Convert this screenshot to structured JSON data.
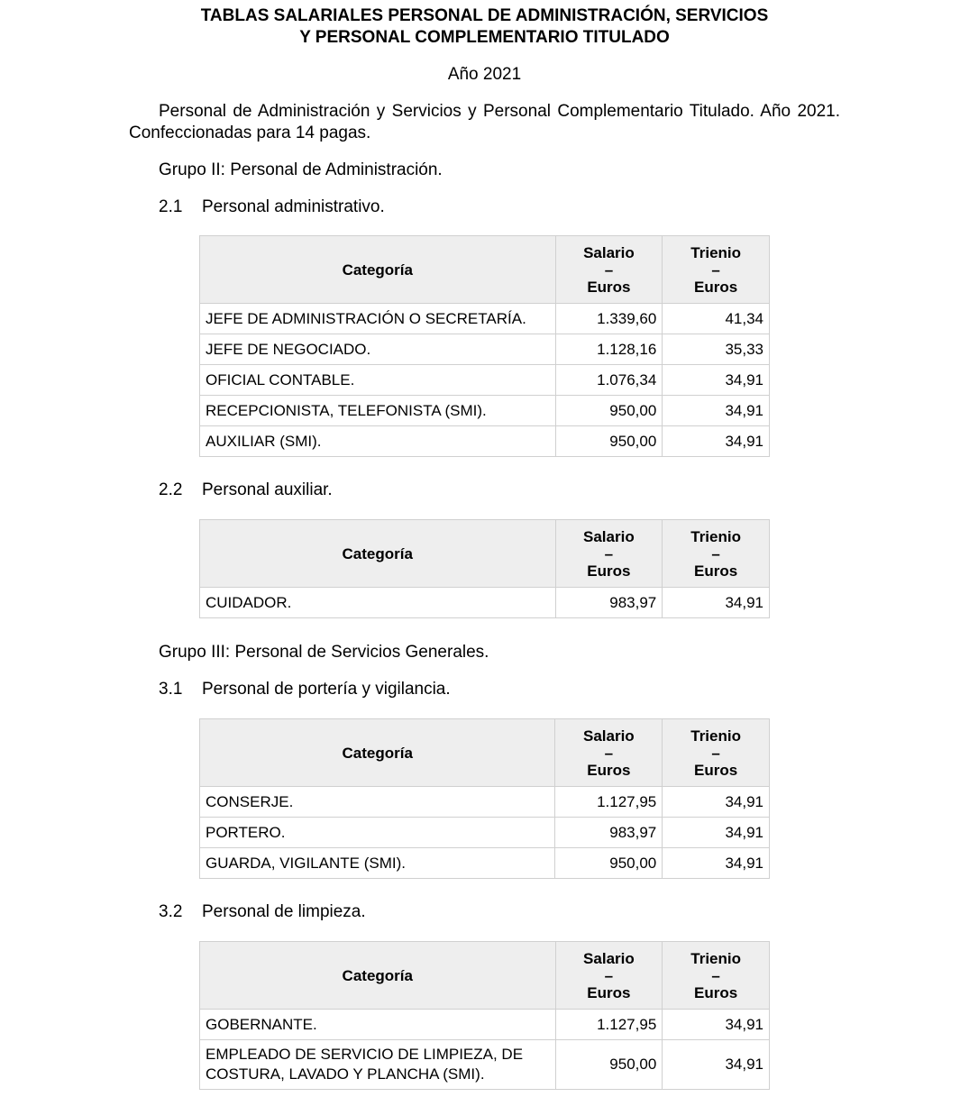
{
  "title": [
    "TABLAS SALARIALES PERSONAL DE ADMINISTRACIÓN, SERVICIOS",
    "Y PERSONAL COMPLEMENTARIO TITULADO"
  ],
  "year": "Año 2021",
  "intro": "Personal de Administración y Servicios y Personal Complementario Titulado. Año 2021. Confeccionadas para 14 pagas.",
  "header": {
    "categoria": "Categoría",
    "salario": [
      "Salario",
      "–",
      "Euros"
    ],
    "trienio": [
      "Trienio",
      "–",
      "Euros"
    ]
  },
  "groups": {
    "g2": "Grupo II: Personal de Administración.",
    "g3": "Grupo III: Personal de Servicios Generales."
  },
  "sections": [
    {
      "num": "2.1",
      "title": "Personal administrativo.",
      "rows": [
        [
          "JEFE DE ADMINISTRACIÓN O SECRETARÍA.",
          "1.339,60",
          "41,34"
        ],
        [
          "JEFE DE NEGOCIADO.",
          "1.128,16",
          "35,33"
        ],
        [
          "OFICIAL CONTABLE.",
          "1.076,34",
          "34,91"
        ],
        [
          "RECEPCIONISTA, TELEFONISTA (SMI).",
          "950,00",
          "34,91"
        ],
        [
          "AUXILIAR (SMI).",
          "950,00",
          "34,91"
        ]
      ]
    },
    {
      "num": "2.2",
      "title": "Personal auxiliar.",
      "rows": [
        [
          "CUIDADOR.",
          "983,97",
          "34,91"
        ]
      ]
    },
    {
      "num": "3.1",
      "title": "Personal de portería y vigilancia.",
      "rows": [
        [
          "CONSERJE.",
          "1.127,95",
          "34,91"
        ],
        [
          "PORTERO.",
          "983,97",
          "34,91"
        ],
        [
          "GUARDA, VIGILANTE (SMI).",
          "950,00",
          "34,91"
        ]
      ]
    },
    {
      "num": "3.2",
      "title": "Personal de limpieza.",
      "rows": [
        [
          "GOBERNANTE.",
          "1.127,95",
          "34,91"
        ],
        [
          "EMPLEADO DE SERVICIO DE LIMPIEZA, DE COSTURA, LAVADO Y PLANCHA (SMI).",
          "950,00",
          "34,91"
        ]
      ]
    }
  ]
}
